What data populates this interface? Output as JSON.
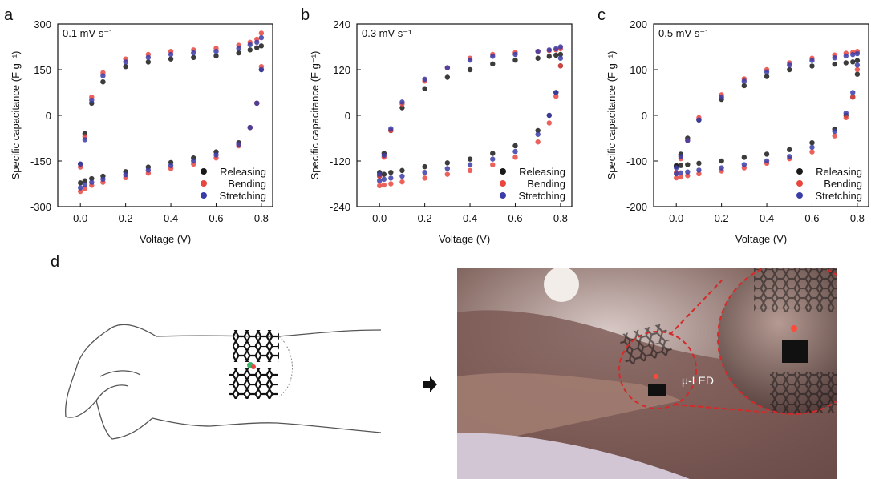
{
  "panel_labels": [
    "a",
    "b",
    "c",
    "d"
  ],
  "photo_annotation": "μ-LED",
  "chart_data": [
    {
      "type": "scatter",
      "annotation": "0.1 mV s⁻¹",
      "x_label": "Voltage (V)",
      "y_label": "Specific capacitance (F g⁻¹)",
      "x": [
        0,
        0.02,
        0.05,
        0.1,
        0.2,
        0.3,
        0.4,
        0.5,
        0.6,
        0.7,
        0.75,
        0.78,
        0.8,
        0.8,
        0.78,
        0.75,
        0.7,
        0.6,
        0.5,
        0.4,
        0.3,
        0.2,
        0.1,
        0.05,
        0.02,
        0
      ],
      "series": [
        {
          "name": "Releasing",
          "color": "#1a1a1a",
          "values": [
            -160,
            -60,
            40,
            110,
            160,
            175,
            185,
            190,
            195,
            205,
            215,
            222,
            228,
            150,
            40,
            -40,
            -90,
            -120,
            -140,
            -155,
            -170,
            -185,
            -200,
            -208,
            -215,
            -222
          ]
        },
        {
          "name": "Bending",
          "color": "#e8463f",
          "values": [
            -170,
            -70,
            60,
            140,
            185,
            200,
            210,
            215,
            220,
            230,
            240,
            250,
            270,
            160,
            40,
            -40,
            -100,
            -140,
            -160,
            -175,
            -190,
            -205,
            -220,
            -230,
            -240,
            -250
          ]
        },
        {
          "name": "Stretching",
          "color": "#3a3ca8",
          "values": [
            -160,
            -80,
            50,
            130,
            175,
            190,
            200,
            205,
            210,
            220,
            232,
            240,
            255,
            150,
            40,
            -40,
            -95,
            -130,
            -150,
            -165,
            -180,
            -195,
            -210,
            -220,
            -228,
            -238
          ]
        }
      ],
      "xlim": [
        -0.1,
        0.85
      ],
      "xticks": [
        {
          "value": 0,
          "label": "0.0"
        },
        0.2,
        0.4,
        0.6,
        0.8
      ],
      "ylim": [
        -300,
        300
      ],
      "yticks": [
        -300,
        -150,
        0,
        150,
        300
      ],
      "legend": "lower right"
    },
    {
      "type": "scatter",
      "annotation": "0.3 mV s⁻¹",
      "x_label": "Voltage (V)",
      "y_label": "Specific capacitance (F g⁻¹)",
      "x": [
        0,
        0.02,
        0.05,
        0.1,
        0.2,
        0.3,
        0.4,
        0.5,
        0.6,
        0.7,
        0.75,
        0.78,
        0.8,
        0.8,
        0.78,
        0.75,
        0.7,
        0.6,
        0.5,
        0.4,
        0.3,
        0.2,
        0.1,
        0.05,
        0.02,
        0
      ],
      "series": [
        {
          "name": "Releasing",
          "color": "#1a1a1a",
          "values": [
            -150,
            -100,
            -40,
            20,
            70,
            100,
            120,
            135,
            145,
            150,
            155,
            158,
            160,
            130,
            60,
            0,
            -40,
            -80,
            -100,
            -115,
            -125,
            -135,
            -145,
            -150,
            -155,
            -160
          ]
        },
        {
          "name": "Bending",
          "color": "#e8463f",
          "values": [
            -160,
            -110,
            -40,
            30,
            90,
            125,
            150,
            160,
            165,
            168,
            170,
            172,
            175,
            130,
            50,
            -20,
            -70,
            -110,
            -130,
            -145,
            -155,
            -165,
            -175,
            -180,
            -183,
            -185
          ]
        },
        {
          "name": "Stretching",
          "color": "#3a3ca8",
          "values": [
            -155,
            -105,
            -35,
            35,
            95,
            125,
            145,
            155,
            160,
            168,
            172,
            175,
            180,
            150,
            60,
            0,
            -50,
            -95,
            -115,
            -130,
            -140,
            -150,
            -160,
            -165,
            -168,
            -172
          ]
        }
      ],
      "xlim": [
        -0.1,
        0.85
      ],
      "xticks": [
        {
          "value": 0,
          "label": "0.0"
        },
        0.2,
        0.4,
        0.6,
        0.8
      ],
      "ylim": [
        -240,
        240
      ],
      "yticks": [
        -240,
        -120,
        0,
        120,
        240
      ],
      "legend": "lower right"
    },
    {
      "type": "scatter",
      "annotation": "0.5 mV s⁻¹",
      "x_label": "Voltage (V)",
      "y_label": "Specific capacitance (F g⁻¹)",
      "x": [
        0,
        0.02,
        0.05,
        0.1,
        0.2,
        0.3,
        0.4,
        0.5,
        0.6,
        0.7,
        0.75,
        0.78,
        0.8,
        0.8,
        0.78,
        0.75,
        0.7,
        0.6,
        0.5,
        0.4,
        0.3,
        0.2,
        0.1,
        0.05,
        0.02,
        0
      ],
      "series": [
        {
          "name": "Releasing",
          "color": "#1a1a1a",
          "values": [
            -110,
            -85,
            -50,
            -10,
            35,
            65,
            85,
            100,
            108,
            112,
            115,
            117,
            120,
            90,
            40,
            0,
            -30,
            -60,
            -75,
            -85,
            -92,
            -100,
            -105,
            -108,
            -110,
            -112
          ]
        },
        {
          "name": "Bending",
          "color": "#e8463f",
          "values": [
            -125,
            -95,
            -55,
            -5,
            45,
            80,
            100,
            115,
            125,
            132,
            136,
            138,
            140,
            100,
            40,
            -5,
            -45,
            -80,
            -95,
            -105,
            -115,
            -122,
            -128,
            -132,
            -135,
            -137
          ]
        },
        {
          "name": "Stretching",
          "color": "#3a3ca8",
          "values": [
            -115,
            -90,
            -55,
            -10,
            40,
            75,
            95,
            110,
            120,
            126,
            130,
            133,
            135,
            110,
            50,
            5,
            -35,
            -70,
            -90,
            -100,
            -108,
            -115,
            -120,
            -124,
            -126,
            -128
          ]
        }
      ],
      "xlim": [
        -0.1,
        0.85
      ],
      "xticks": [
        {
          "value": 0,
          "label": "0.0"
        },
        0.2,
        0.4,
        0.6,
        0.8
      ],
      "ylim": [
        -200,
        200
      ],
      "yticks": [
        -200,
        -100,
        0,
        100,
        200
      ],
      "legend": "lower right"
    }
  ]
}
